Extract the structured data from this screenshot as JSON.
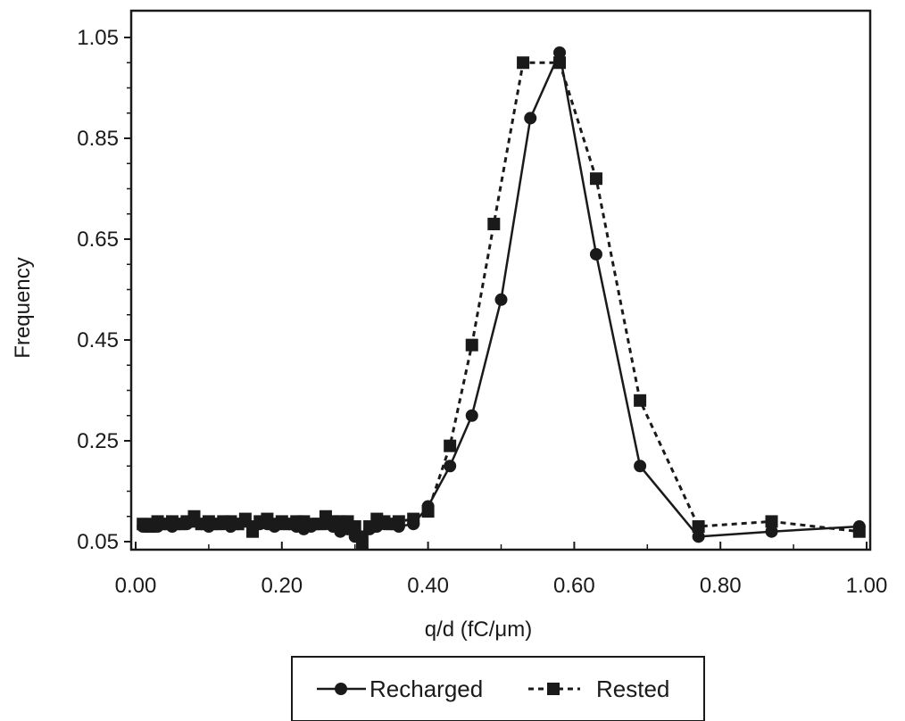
{
  "chart_data": {
    "type": "line",
    "xlabel": "q/d  (fC/μm)",
    "ylabel": "Frequency",
    "xlim": [
      0,
      1.0
    ],
    "ylim": [
      0.05,
      1.05
    ],
    "x_ticks": [
      0.0,
      0.2,
      0.4,
      0.6,
      0.8,
      1.0
    ],
    "x_tick_labels": [
      "0.00",
      "0.20",
      "0.40",
      "0.60",
      "0.80",
      "1.00"
    ],
    "y_ticks": [
      0.05,
      0.25,
      0.45,
      0.65,
      0.85,
      1.05
    ],
    "y_tick_labels": [
      "0.05",
      "0.25",
      "0.45",
      "0.65",
      "0.85",
      "1.05"
    ],
    "legend_position": "bottom-center",
    "grid": false,
    "series": [
      {
        "name": "Recharged",
        "line_style": "solid",
        "marker": "circle",
        "color": "#1a1a1a",
        "points": [
          [
            0.01,
            0.08
          ],
          [
            0.02,
            0.085
          ],
          [
            0.03,
            0.08
          ],
          [
            0.04,
            0.085
          ],
          [
            0.05,
            0.08
          ],
          [
            0.06,
            0.085
          ],
          [
            0.07,
            0.085
          ],
          [
            0.08,
            0.09
          ],
          [
            0.09,
            0.085
          ],
          [
            0.1,
            0.08
          ],
          [
            0.11,
            0.085
          ],
          [
            0.12,
            0.085
          ],
          [
            0.13,
            0.08
          ],
          [
            0.14,
            0.085
          ],
          [
            0.15,
            0.09
          ],
          [
            0.16,
            0.08
          ],
          [
            0.17,
            0.085
          ],
          [
            0.18,
            0.085
          ],
          [
            0.19,
            0.08
          ],
          [
            0.2,
            0.085
          ],
          [
            0.21,
            0.085
          ],
          [
            0.22,
            0.08
          ],
          [
            0.23,
            0.075
          ],
          [
            0.24,
            0.08
          ],
          [
            0.25,
            0.085
          ],
          [
            0.26,
            0.085
          ],
          [
            0.27,
            0.08
          ],
          [
            0.28,
            0.07
          ],
          [
            0.29,
            0.075
          ],
          [
            0.3,
            0.06
          ],
          [
            0.31,
            0.06
          ],
          [
            0.32,
            0.075
          ],
          [
            0.33,
            0.08
          ],
          [
            0.34,
            0.085
          ],
          [
            0.35,
            0.085
          ],
          [
            0.36,
            0.08
          ],
          [
            0.38,
            0.085
          ],
          [
            0.4,
            0.12
          ],
          [
            0.43,
            0.2
          ],
          [
            0.46,
            0.3
          ],
          [
            0.5,
            0.53
          ],
          [
            0.54,
            0.89
          ],
          [
            0.58,
            1.02
          ],
          [
            0.63,
            0.62
          ],
          [
            0.69,
            0.2
          ],
          [
            0.77,
            0.06
          ],
          [
            0.87,
            0.07
          ],
          [
            0.99,
            0.08
          ]
        ]
      },
      {
        "name": "Rested",
        "line_style": "dashed",
        "marker": "square",
        "color": "#1a1a1a",
        "points": [
          [
            0.01,
            0.085
          ],
          [
            0.02,
            0.08
          ],
          [
            0.03,
            0.09
          ],
          [
            0.04,
            0.085
          ],
          [
            0.05,
            0.09
          ],
          [
            0.06,
            0.085
          ],
          [
            0.07,
            0.09
          ],
          [
            0.08,
            0.1
          ],
          [
            0.09,
            0.085
          ],
          [
            0.1,
            0.09
          ],
          [
            0.11,
            0.085
          ],
          [
            0.12,
            0.09
          ],
          [
            0.13,
            0.09
          ],
          [
            0.14,
            0.085
          ],
          [
            0.15,
            0.095
          ],
          [
            0.16,
            0.07
          ],
          [
            0.17,
            0.09
          ],
          [
            0.18,
            0.095
          ],
          [
            0.19,
            0.085
          ],
          [
            0.2,
            0.09
          ],
          [
            0.21,
            0.085
          ],
          [
            0.22,
            0.09
          ],
          [
            0.23,
            0.09
          ],
          [
            0.24,
            0.085
          ],
          [
            0.25,
            0.085
          ],
          [
            0.26,
            0.1
          ],
          [
            0.27,
            0.09
          ],
          [
            0.28,
            0.09
          ],
          [
            0.29,
            0.09
          ],
          [
            0.3,
            0.08
          ],
          [
            0.31,
            0.045
          ],
          [
            0.32,
            0.08
          ],
          [
            0.33,
            0.095
          ],
          [
            0.34,
            0.09
          ],
          [
            0.35,
            0.085
          ],
          [
            0.36,
            0.09
          ],
          [
            0.38,
            0.095
          ],
          [
            0.4,
            0.11
          ],
          [
            0.43,
            0.24
          ],
          [
            0.46,
            0.44
          ],
          [
            0.49,
            0.68
          ],
          [
            0.53,
            1.0
          ],
          [
            0.58,
            1.0
          ],
          [
            0.63,
            0.77
          ],
          [
            0.69,
            0.33
          ],
          [
            0.77,
            0.08
          ],
          [
            0.87,
            0.09
          ],
          [
            0.99,
            0.07
          ]
        ]
      }
    ]
  }
}
